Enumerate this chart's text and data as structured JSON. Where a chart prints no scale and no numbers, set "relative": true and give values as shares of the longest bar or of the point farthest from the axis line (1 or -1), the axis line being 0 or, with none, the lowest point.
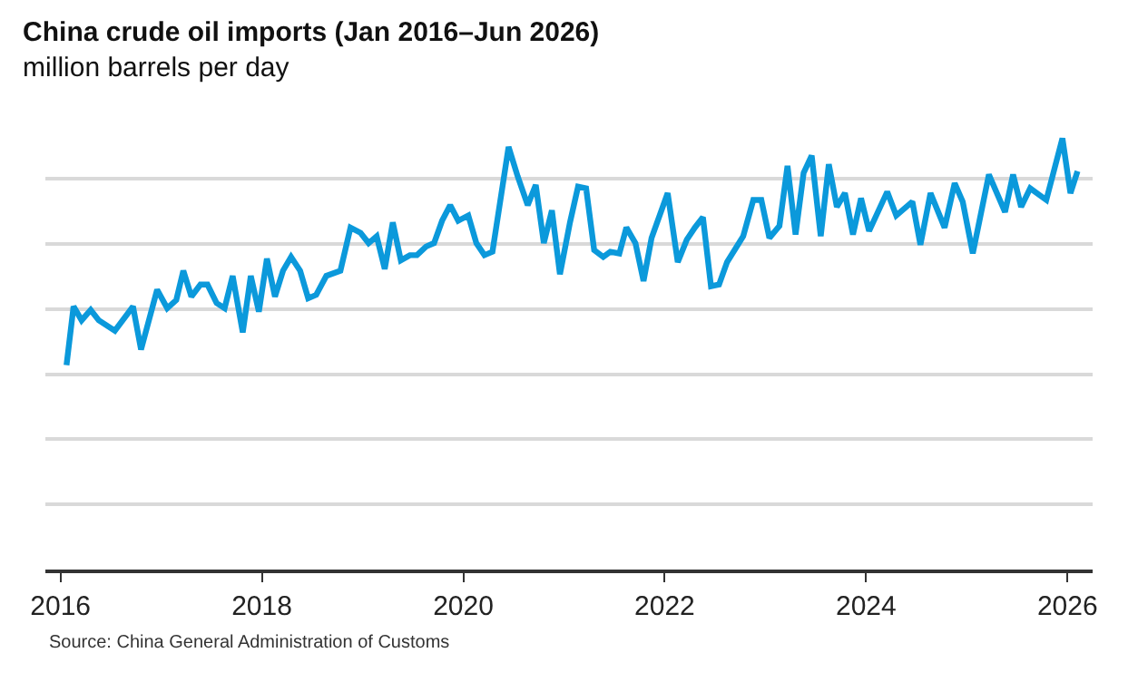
{
  "chart_data": {
    "type": "line",
    "title": "China crude oil imports (Jan 2016–Jun 2026)",
    "subtitle": "million barrels per day",
    "relative": true,
    "grid": "y",
    "marker": "none",
    "line_style": "solid",
    "xlim": [
      2015.85,
      2026.25
    ],
    "xticks": [
      2016,
      2018,
      2020,
      2022,
      2024,
      2026
    ],
    "annotations": [
      "Source: China General Administration of Customs"
    ],
    "x": [
      2016.06,
      2016.13,
      2016.21,
      2016.3,
      2016.38,
      2016.54,
      2016.72,
      2016.8,
      2016.96,
      2017.06,
      2017.15,
      2017.22,
      2017.3,
      2017.39,
      2017.46,
      2017.55,
      2017.63,
      2017.71,
      2017.81,
      2017.89,
      2017.97,
      2018.05,
      2018.13,
      2018.21,
      2018.29,
      2018.38,
      2018.46,
      2018.54,
      2018.64,
      2018.78,
      2018.88,
      2018.98,
      2019.06,
      2019.14,
      2019.22,
      2019.3,
      2019.38,
      2019.47,
      2019.54,
      2019.63,
      2019.71,
      2019.79,
      2019.87,
      2019.95,
      2020.05,
      2020.13,
      2020.21,
      2020.29,
      2020.45,
      2020.54,
      2020.64,
      2020.72,
      2020.8,
      2020.88,
      2020.96,
      2021.06,
      2021.14,
      2021.22,
      2021.3,
      2021.39,
      2021.46,
      2021.55,
      2021.62,
      2021.71,
      2021.79,
      2021.87,
      2022.03,
      2022.13,
      2022.22,
      2022.3,
      2022.38,
      2022.46,
      2022.54,
      2022.62,
      2022.78,
      2022.88,
      2022.96,
      2023.04,
      2023.14,
      2023.22,
      2023.3,
      2023.38,
      2023.46,
      2023.55,
      2023.63,
      2023.71,
      2023.79,
      2023.87,
      2023.95,
      2024.03,
      2024.21,
      2024.3,
      2024.46,
      2024.54,
      2024.64,
      2024.78,
      2024.88,
      2024.96,
      2025.06,
      2025.22,
      2025.38,
      2025.46,
      2025.54,
      2025.63,
      2025.79,
      2025.95,
      2026.03,
      2026.1
    ],
    "series": [
      {
        "color": "#0b99db",
        "values": [
          0.474,
          0.61,
          0.578,
          0.602,
          0.578,
          0.554,
          0.61,
          0.51,
          0.649,
          0.606,
          0.625,
          0.693,
          0.633,
          0.661,
          0.661,
          0.618,
          0.606,
          0.681,
          0.55,
          0.681,
          0.598,
          0.721,
          0.633,
          0.693,
          0.725,
          0.693,
          0.629,
          0.637,
          0.681,
          0.693,
          0.793,
          0.781,
          0.757,
          0.773,
          0.697,
          0.805,
          0.717,
          0.729,
          0.729,
          0.749,
          0.757,
          0.809,
          0.845,
          0.809,
          0.821,
          0.757,
          0.729,
          0.737,
          0.98,
          0.912,
          0.845,
          0.892,
          0.757,
          0.833,
          0.685,
          0.805,
          0.888,
          0.884,
          0.741,
          0.725,
          0.737,
          0.733,
          0.793,
          0.757,
          0.669,
          0.769,
          0.873,
          0.713,
          0.765,
          0.793,
          0.817,
          0.657,
          0.661,
          0.713,
          0.773,
          0.857,
          0.857,
          0.769,
          0.797,
          0.936,
          0.777,
          0.92,
          0.96,
          0.773,
          0.94,
          0.841,
          0.873,
          0.777,
          0.861,
          0.785,
          0.876,
          0.821,
          0.853,
          0.753,
          0.873,
          0.793,
          0.896,
          0.853,
          0.733,
          0.916,
          0.829,
          0.916,
          0.841,
          0.884,
          0.857,
          1.0,
          0.873,
          0.924
        ]
      }
    ]
  }
}
